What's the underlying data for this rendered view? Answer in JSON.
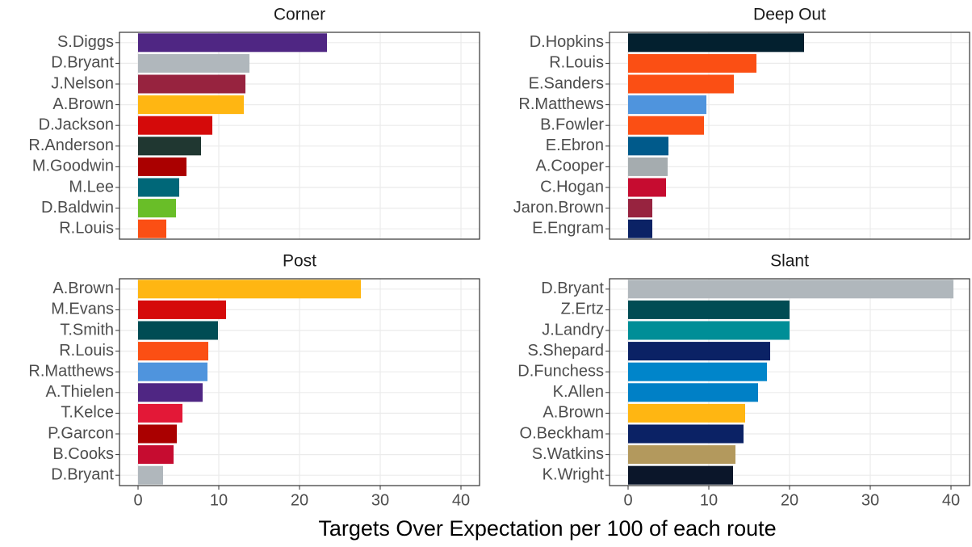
{
  "chart_data": [
    {
      "type": "barh",
      "title": "Corner",
      "categories": [
        "S.Diggs",
        "D.Bryant",
        "J.Nelson",
        "A.Brown",
        "D.Jackson",
        "R.Anderson",
        "M.Goodwin",
        "M.Lee",
        "D.Baldwin",
        "R.Louis"
      ],
      "values": [
        23.4,
        13.8,
        13.3,
        13.1,
        9.2,
        7.8,
        6.0,
        5.1,
        4.7,
        3.5
      ],
      "colors": [
        "#4f2683",
        "#b0b7bc",
        "#97233f",
        "#ffb612",
        "#d50a0a",
        "#203731",
        "#aa0000",
        "#006778",
        "#69be28",
        "#fb4f14"
      ],
      "xlim": [
        -2.3,
        42.3
      ],
      "xticks": [
        0,
        10,
        20,
        30,
        40
      ],
      "grid": true
    },
    {
      "type": "barh",
      "title": "Deep Out",
      "categories": [
        "D.Hopkins",
        "R.Louis",
        "E.Sanders",
        "R.Matthews",
        "B.Fowler",
        "E.Ebron",
        "A.Cooper",
        "C.Hogan",
        "Jaron.Brown",
        "E.Engram"
      ],
      "values": [
        21.8,
        15.9,
        13.1,
        9.7,
        9.4,
        5.0,
        4.9,
        4.7,
        3.0,
        3.0
      ],
      "colors": [
        "#03202f",
        "#fb4f14",
        "#fb4f14",
        "#4f94dd",
        "#fb4f14",
        "#005a8b",
        "#a5acaf",
        "#c60c30",
        "#97233f",
        "#0b2265"
      ],
      "xlim": [
        -2.3,
        42.3
      ],
      "xticks": [
        0,
        10,
        20,
        30,
        40
      ],
      "grid": true
    },
    {
      "type": "barh",
      "title": "Post",
      "categories": [
        "A.Brown",
        "M.Evans",
        "T.Smith",
        "R.Louis",
        "R.Matthews",
        "A.Thielen",
        "T.Kelce",
        "P.Garcon",
        "B.Cooks",
        "D.Bryant"
      ],
      "values": [
        27.6,
        10.9,
        9.9,
        8.7,
        8.6,
        8.0,
        5.5,
        4.8,
        4.4,
        3.1
      ],
      "colors": [
        "#ffb612",
        "#d50a0a",
        "#004c54",
        "#fb4f14",
        "#4f94dd",
        "#4f2683",
        "#e31837",
        "#aa0000",
        "#c60c30",
        "#b0b7bc"
      ],
      "xlim": [
        -2.3,
        42.3
      ],
      "xticks": [
        0,
        10,
        20,
        30,
        40
      ],
      "grid": true
    },
    {
      "type": "barh",
      "title": "Slant",
      "categories": [
        "D.Bryant",
        "Z.Ertz",
        "J.Landry",
        "S.Shepard",
        "D.Funchess",
        "K.Allen",
        "A.Brown",
        "O.Beckham",
        "S.Watkins",
        "K.Wright"
      ],
      "values": [
        40.3,
        20.0,
        20.0,
        17.6,
        17.2,
        16.1,
        14.5,
        14.3,
        13.3,
        13.0
      ],
      "colors": [
        "#b0b7bc",
        "#004c54",
        "#008e97",
        "#0b2265",
        "#0085ca",
        "#0080c6",
        "#ffb612",
        "#0b2265",
        "#b3995d",
        "#0b162a"
      ],
      "xlim": [
        -2.3,
        42.3
      ],
      "xticks": [
        0,
        10,
        20,
        30,
        40
      ],
      "grid": true
    }
  ],
  "x_label": "Targets Over Expectation per 100 of each route"
}
